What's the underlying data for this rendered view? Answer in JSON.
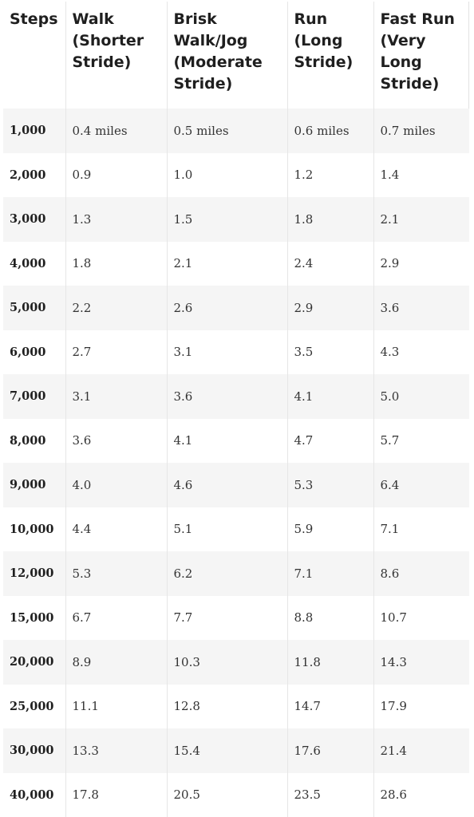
{
  "table": {
    "headers": [
      "Steps",
      "Walk (Shorter Stride)",
      "Brisk Walk/Jog (Moderate Stride)",
      "Run (Long Stride)",
      "Fast Run (Very Long Stride)"
    ],
    "rows": [
      [
        "1,000",
        "0.4 miles",
        "0.5 miles",
        "0.6 miles",
        "0.7 miles"
      ],
      [
        "2,000",
        "0.9",
        "1.0",
        "1.2",
        "1.4"
      ],
      [
        "3,000",
        "1.3",
        "1.5",
        "1.8",
        "2.1"
      ],
      [
        "4,000",
        "1.8",
        "2.1",
        "2.4",
        "2.9"
      ],
      [
        "5,000",
        "2.2",
        "2.6",
        "2.9",
        "3.6"
      ],
      [
        "6,000",
        "2.7",
        "3.1",
        "3.5",
        "4.3"
      ],
      [
        "7,000",
        "3.1",
        "3.6",
        "4.1",
        "5.0"
      ],
      [
        "8,000",
        "3.6",
        "4.1",
        "4.7",
        "5.7"
      ],
      [
        "9,000",
        "4.0",
        "4.6",
        "5.3",
        "6.4"
      ],
      [
        "10,000",
        "4.4",
        "5.1",
        "5.9",
        "7.1"
      ],
      [
        "12,000",
        "5.3",
        "6.2",
        "7.1",
        "8.6"
      ],
      [
        "15,000",
        "6.7",
        "7.7",
        "8.8",
        "10.7"
      ],
      [
        "20,000",
        "8.9",
        "10.3",
        "11.8",
        "14.3"
      ],
      [
        "25,000",
        "11.1",
        "12.8",
        "14.7",
        "17.9"
      ],
      [
        "30,000",
        "13.3",
        "15.4",
        "17.6",
        "21.4"
      ],
      [
        "40,000",
        "17.8",
        "20.5",
        "23.5",
        "28.6"
      ]
    ]
  }
}
